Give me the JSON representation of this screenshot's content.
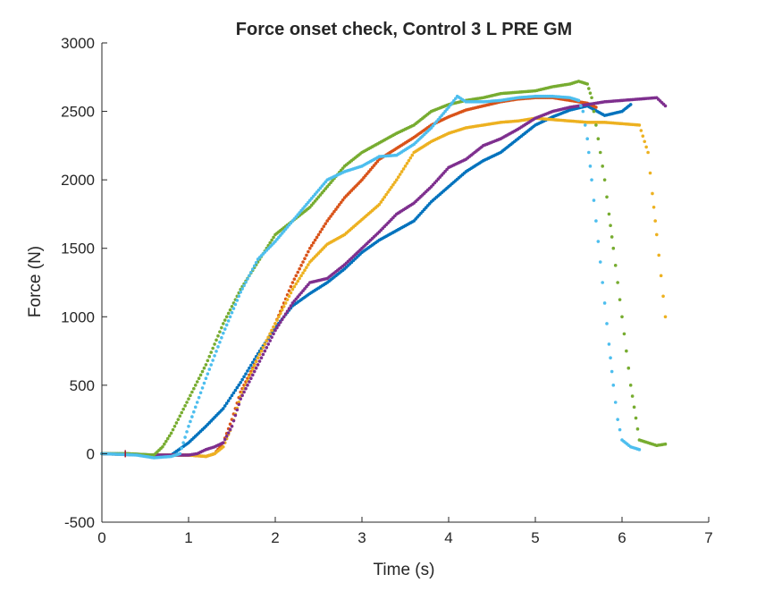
{
  "chart_data": {
    "type": "scatter",
    "title": "Force onset check, Control 3 L PRE GM",
    "xlabel": "Time (s)",
    "ylabel": "Force (N)",
    "xlim": [
      0,
      7
    ],
    "ylim": [
      -500,
      3000
    ],
    "xticks": [
      "0",
      "1",
      "2",
      "3",
      "4",
      "5",
      "6",
      "7"
    ],
    "yticks": [
      "-500",
      "0",
      "500",
      "1000",
      "1500",
      "2000",
      "2500",
      "3000"
    ],
    "grid": false,
    "series": [
      {
        "color": "#0072BD",
        "x": [
          0,
          0.3,
          0.6,
          0.8,
          1.0,
          1.2,
          1.4,
          1.6,
          1.8,
          2.0,
          2.2,
          2.4,
          2.6,
          2.8,
          3.0,
          3.2,
          3.4,
          3.6,
          3.8,
          4.0,
          4.2,
          4.4,
          4.6,
          4.8,
          5.0,
          5.2,
          5.4,
          5.6,
          5.8,
          6.0,
          6.1
        ],
        "y": [
          0,
          0,
          -10,
          -10,
          80,
          200,
          330,
          520,
          730,
          920,
          1080,
          1170,
          1250,
          1350,
          1470,
          1560,
          1630,
          1700,
          1840,
          1950,
          2060,
          2140,
          2200,
          2300,
          2400,
          2460,
          2510,
          2540,
          2470,
          2500,
          2550
        ]
      },
      {
        "color": "#D95319",
        "x": [
          0,
          0.5,
          1.0,
          1.2,
          1.3,
          1.4,
          1.5,
          1.6,
          1.8,
          2.0,
          2.2,
          2.4,
          2.6,
          2.8,
          3.0,
          3.2,
          3.4,
          3.6,
          3.8,
          4.0,
          4.2,
          4.4,
          4.6,
          4.8,
          5.0,
          5.2,
          5.4,
          5.6,
          5.7
        ],
        "y": [
          0,
          -10,
          -10,
          -20,
          0,
          80,
          250,
          450,
          700,
          950,
          1250,
          1500,
          1700,
          1870,
          2000,
          2150,
          2230,
          2310,
          2400,
          2460,
          2510,
          2540,
          2570,
          2590,
          2600,
          2600,
          2580,
          2560,
          2530
        ]
      },
      {
        "color": "#EDB120",
        "x": [
          0,
          0.5,
          1.0,
          1.2,
          1.3,
          1.4,
          1.5,
          1.6,
          1.8,
          2.0,
          2.2,
          2.4,
          2.6,
          2.8,
          3.0,
          3.2,
          3.4,
          3.6,
          3.8,
          4.0,
          4.2,
          4.4,
          4.6,
          4.8,
          5.0,
          5.2,
          5.4,
          5.6,
          5.8,
          6.0,
          6.2,
          6.3,
          6.35,
          6.4,
          6.45,
          6.5
        ],
        "y": [
          0,
          -10,
          -10,
          -20,
          0,
          50,
          200,
          420,
          700,
          950,
          1200,
          1400,
          1530,
          1600,
          1710,
          1820,
          2000,
          2200,
          2280,
          2340,
          2380,
          2400,
          2420,
          2430,
          2450,
          2440,
          2430,
          2420,
          2420,
          2410,
          2400,
          2200,
          1900,
          1600,
          1300,
          1000
        ]
      },
      {
        "color": "#7E2F8E",
        "x": [
          0,
          0.5,
          1.0,
          1.1,
          1.2,
          1.3,
          1.4,
          1.5,
          1.6,
          1.8,
          2.0,
          2.2,
          2.4,
          2.6,
          2.8,
          3.0,
          3.2,
          3.4,
          3.6,
          3.8,
          4.0,
          4.2,
          4.4,
          4.6,
          4.8,
          5.0,
          5.2,
          5.4,
          5.6,
          5.8,
          6.0,
          6.2,
          6.4,
          6.5
        ],
        "y": [
          0,
          -10,
          -10,
          0,
          30,
          50,
          80,
          200,
          400,
          650,
          900,
          1100,
          1250,
          1280,
          1380,
          1500,
          1620,
          1750,
          1830,
          1950,
          2090,
          2150,
          2250,
          2300,
          2370,
          2450,
          2500,
          2530,
          2550,
          2570,
          2580,
          2590,
          2600,
          2540
        ]
      },
      {
        "color": "#77AC30",
        "x": [
          0,
          0.3,
          0.6,
          0.7,
          0.8,
          1.0,
          1.2,
          1.4,
          1.6,
          1.8,
          2.0,
          2.2,
          2.4,
          2.6,
          2.8,
          3.0,
          3.2,
          3.4,
          3.6,
          3.8,
          4.0,
          4.2,
          4.4,
          4.6,
          4.8,
          5.0,
          5.2,
          5.4,
          5.5,
          5.6,
          5.65,
          5.7,
          5.75,
          5.8,
          5.85,
          5.9,
          5.95,
          6.0,
          6.05,
          6.1,
          6.2,
          6.3,
          6.4,
          6.5
        ],
        "y": [
          0,
          0,
          -10,
          50,
          150,
          400,
          650,
          950,
          1200,
          1400,
          1600,
          1700,
          1800,
          1950,
          2100,
          2200,
          2270,
          2340,
          2400,
          2500,
          2550,
          2580,
          2600,
          2630,
          2640,
          2650,
          2680,
          2700,
          2720,
          2700,
          2600,
          2400,
          2200,
          2000,
          1750,
          1500,
          1250,
          1000,
          750,
          500,
          100,
          80,
          60,
          70
        ]
      },
      {
        "color": "#4DBEEE",
        "x": [
          0,
          0.4,
          0.6,
          0.8,
          0.9,
          1.0,
          1.2,
          1.4,
          1.6,
          1.8,
          2.0,
          2.2,
          2.4,
          2.6,
          2.8,
          3.0,
          3.2,
          3.4,
          3.6,
          3.8,
          4.0,
          4.1,
          4.2,
          4.4,
          4.6,
          4.8,
          5.0,
          5.2,
          5.4,
          5.5,
          5.55,
          5.6,
          5.65,
          5.7,
          5.75,
          5.8,
          5.85,
          5.9,
          5.95,
          6.0,
          6.1,
          6.2
        ],
        "y": [
          0,
          -10,
          -30,
          -20,
          0,
          200,
          550,
          880,
          1180,
          1420,
          1550,
          1700,
          1850,
          2000,
          2060,
          2100,
          2170,
          2180,
          2260,
          2380,
          2530,
          2610,
          2570,
          2570,
          2580,
          2600,
          2610,
          2610,
          2600,
          2580,
          2500,
          2300,
          2000,
          1700,
          1400,
          1100,
          800,
          500,
          250,
          100,
          50,
          30
        ]
      }
    ]
  }
}
